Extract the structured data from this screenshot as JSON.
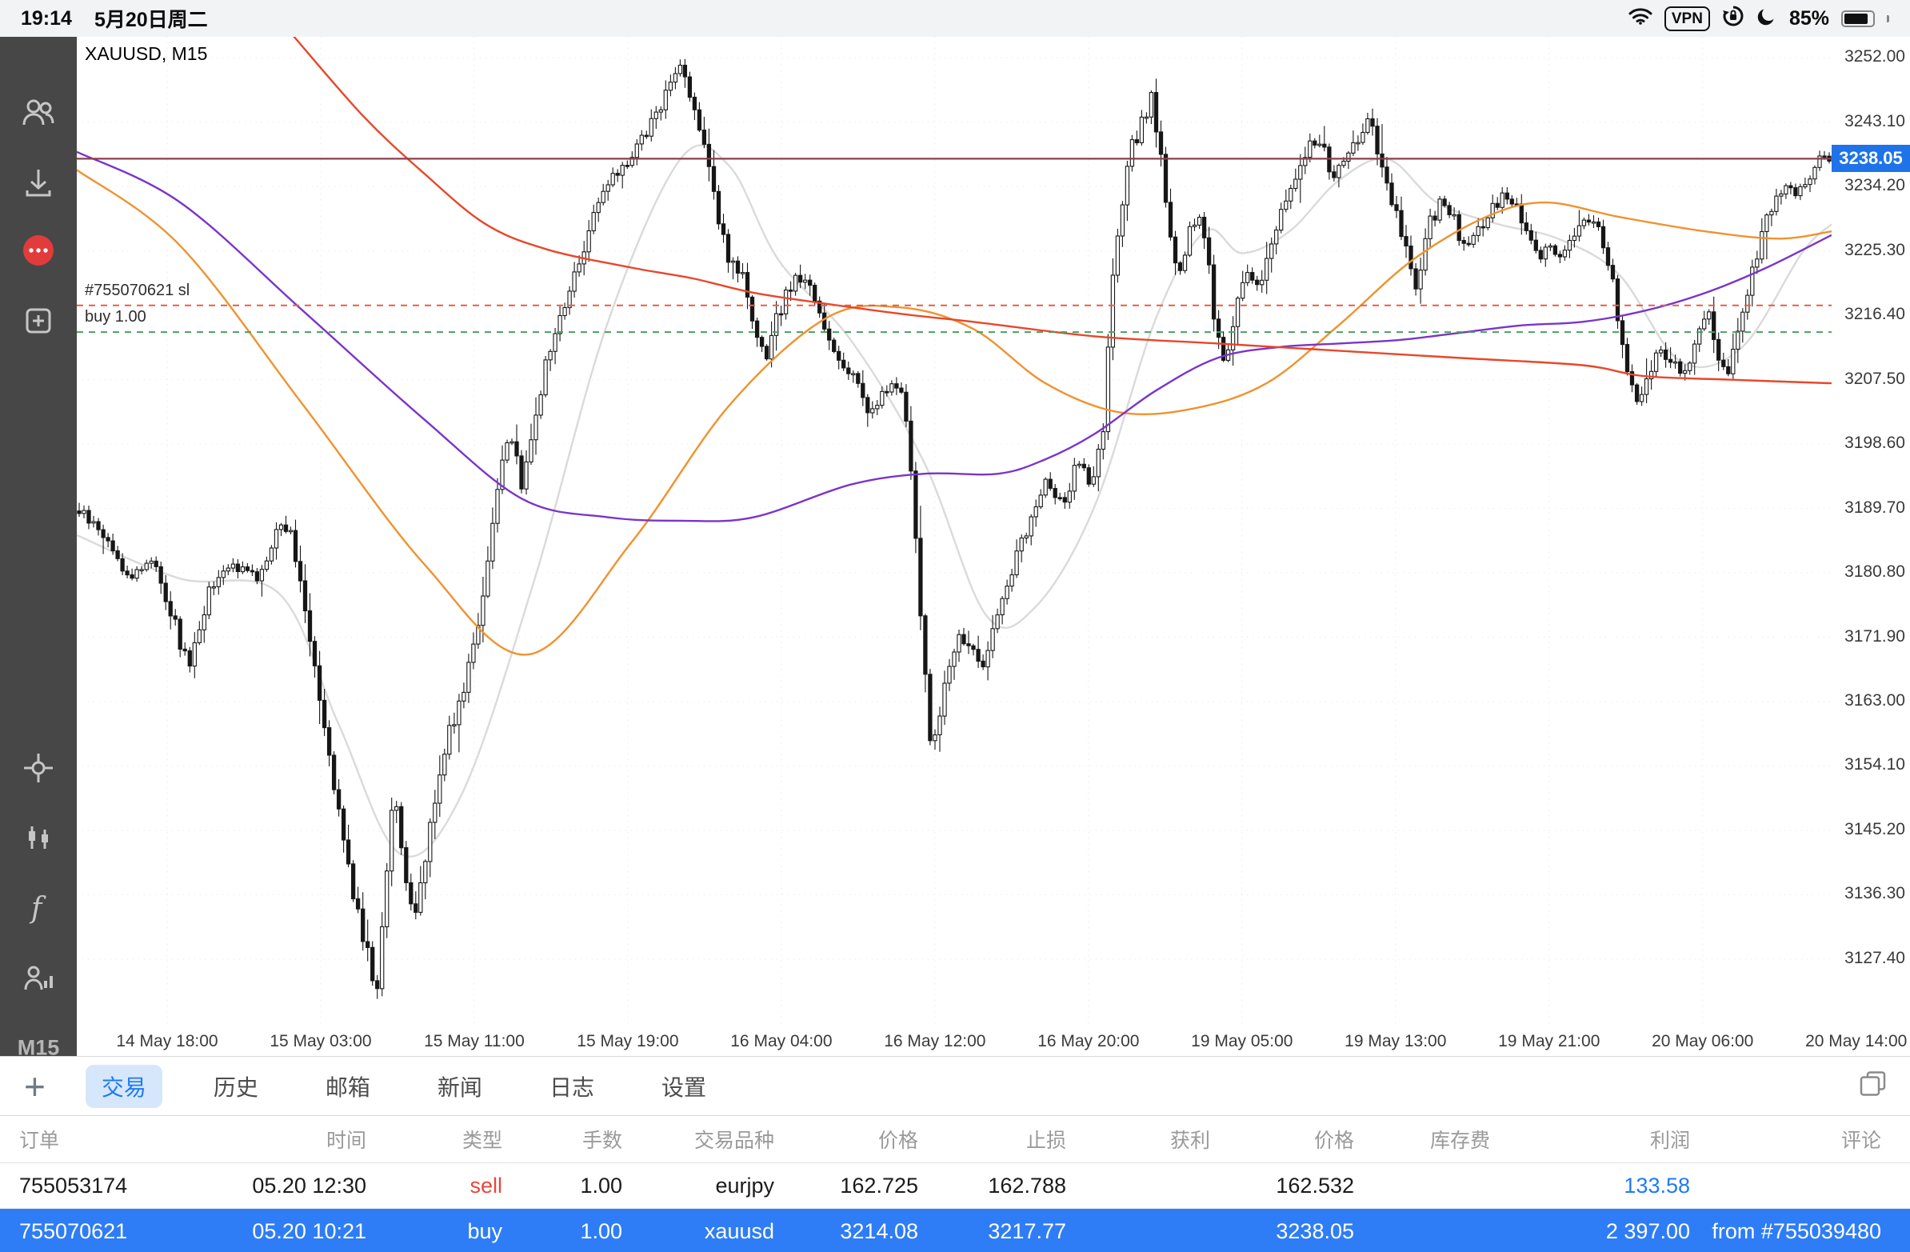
{
  "colors": {
    "accent_blue": "#1f7bf4",
    "sell_red": "#e8463c",
    "selected_row_blue": "#2e7df6",
    "sidebar_bg": "#474747",
    "icon_gray": "#c6c6c6",
    "price_tag_blue": "#1e73e8"
  },
  "status_bar": {
    "time": "19:14",
    "date": "5月20日周二",
    "vpn_label": "VPN",
    "battery_percent": "85%",
    "icons": [
      "wifi-icon",
      "vpn-badge",
      "orientation-lock-icon",
      "moon-icon",
      "battery-icon"
    ]
  },
  "sidebar": {
    "icons": [
      "accounts-icon",
      "download-quotes-icon",
      "messages-icon",
      "new-order-icon",
      "crosshair-icon",
      "indicators-icon",
      "functions-icon",
      "objects-icon"
    ],
    "messages_badge_color": "#e23b3b",
    "timeframe": "M15"
  },
  "chart": {
    "symbol_label": "XAUUSD, M15",
    "sl_line_label": "#755070621 sl",
    "buy_line_label": "buy 1.00",
    "current_price_label": "3238.05"
  },
  "chart_data": {
    "type": "candlestick",
    "symbol": "XAUUSD",
    "timeframe": "M15",
    "title": "XAUUSD, M15",
    "legend": "none",
    "grid": "faint dotted",
    "price_range": {
      "top": 3254.9,
      "bottom": 3118.1
    },
    "current_price": 3238.05,
    "y_ticks": [
      "3252.00",
      "3243.10",
      "3234.20",
      "3225.30",
      "3216.40",
      "3207.50",
      "3198.60",
      "3189.70",
      "3180.80",
      "3171.90",
      "3163.00",
      "3154.10",
      "3145.20",
      "3136.30",
      "3127.40"
    ],
    "x_ticks": [
      {
        "f": 0.0515,
        "label": "14 May 18:00"
      },
      {
        "f": 0.139,
        "label": "15 May 03:00"
      },
      {
        "f": 0.2265,
        "label": "15 May 11:00"
      },
      {
        "f": 0.314,
        "label": "15 May 19:00"
      },
      {
        "f": 0.4015,
        "label": "16 May 04:00"
      },
      {
        "f": 0.489,
        "label": "16 May 12:00"
      },
      {
        "f": 0.5765,
        "label": "16 May 20:00"
      },
      {
        "f": 0.664,
        "label": "19 May 05:00"
      },
      {
        "f": 0.7515,
        "label": "19 May 13:00"
      },
      {
        "f": 0.839,
        "label": "19 May 21:00"
      },
      {
        "f": 0.9265,
        "label": "20 May 06:00"
      },
      {
        "f": 1.014,
        "label": "20 May 14:00"
      }
    ],
    "order_lines": [
      {
        "label": "#755070621 sl",
        "price": 3217.77,
        "color": "#e0604a",
        "style": "dashed"
      },
      {
        "label": "buy 1.00",
        "price": 3214.08,
        "color": "#4aa05e",
        "style": "dashed"
      }
    ],
    "colors": {
      "candle": "#161616",
      "price_line": "#8e3b50"
    },
    "price_path": [
      [
        0.0,
        3190
      ],
      [
        0.017,
        3186
      ],
      [
        0.031,
        3180
      ],
      [
        0.045,
        3183
      ],
      [
        0.059,
        3172
      ],
      [
        0.066,
        3168
      ],
      [
        0.076,
        3178
      ],
      [
        0.09,
        3182
      ],
      [
        0.104,
        3180
      ],
      [
        0.118,
        3188
      ],
      [
        0.125,
        3185
      ],
      [
        0.136,
        3170
      ],
      [
        0.146,
        3155
      ],
      [
        0.156,
        3140
      ],
      [
        0.167,
        3128
      ],
      [
        0.172,
        3122
      ],
      [
        0.177,
        3138
      ],
      [
        0.182,
        3150
      ],
      [
        0.188,
        3140
      ],
      [
        0.193,
        3132
      ],
      [
        0.202,
        3145
      ],
      [
        0.212,
        3158
      ],
      [
        0.222,
        3165
      ],
      [
        0.233,
        3178
      ],
      [
        0.243,
        3195
      ],
      [
        0.25,
        3200
      ],
      [
        0.255,
        3192
      ],
      [
        0.264,
        3205
      ],
      [
        0.275,
        3215
      ],
      [
        0.285,
        3222
      ],
      [
        0.295,
        3230
      ],
      [
        0.306,
        3235
      ],
      [
        0.316,
        3238
      ],
      [
        0.327,
        3242
      ],
      [
        0.337,
        3247
      ],
      [
        0.345,
        3251
      ],
      [
        0.352,
        3247
      ],
      [
        0.358,
        3240
      ],
      [
        0.365,
        3232
      ],
      [
        0.372,
        3225
      ],
      [
        0.38,
        3222
      ],
      [
        0.387,
        3214
      ],
      [
        0.394,
        3210
      ],
      [
        0.403,
        3218
      ],
      [
        0.412,
        3222
      ],
      [
        0.419,
        3220
      ],
      [
        0.427,
        3215
      ],
      [
        0.436,
        3210
      ],
      [
        0.445,
        3208
      ],
      [
        0.452,
        3203
      ],
      [
        0.459,
        3205
      ],
      [
        0.468,
        3207
      ],
      [
        0.475,
        3202
      ],
      [
        0.482,
        3175
      ],
      [
        0.489,
        3155
      ],
      [
        0.495,
        3165
      ],
      [
        0.504,
        3172
      ],
      [
        0.511,
        3170
      ],
      [
        0.519,
        3168
      ],
      [
        0.526,
        3175
      ],
      [
        0.535,
        3182
      ],
      [
        0.544,
        3188
      ],
      [
        0.554,
        3194
      ],
      [
        0.563,
        3190
      ],
      [
        0.572,
        3196
      ],
      [
        0.58,
        3192
      ],
      [
        0.586,
        3200
      ],
      [
        0.593,
        3225
      ],
      [
        0.6,
        3238
      ],
      [
        0.607,
        3242
      ],
      [
        0.614,
        3247
      ],
      [
        0.618,
        3240
      ],
      [
        0.623,
        3230
      ],
      [
        0.629,
        3222
      ],
      [
        0.636,
        3228
      ],
      [
        0.643,
        3230
      ],
      [
        0.65,
        3215
      ],
      [
        0.655,
        3210
      ],
      [
        0.662,
        3218
      ],
      [
        0.669,
        3222
      ],
      [
        0.676,
        3220
      ],
      [
        0.683,
        3228
      ],
      [
        0.69,
        3232
      ],
      [
        0.697,
        3236
      ],
      [
        0.704,
        3240
      ],
      [
        0.711,
        3240
      ],
      [
        0.716,
        3235
      ],
      [
        0.723,
        3238
      ],
      [
        0.73,
        3240
      ],
      [
        0.737,
        3244
      ],
      [
        0.741,
        3241
      ],
      [
        0.747,
        3236
      ],
      [
        0.753,
        3230
      ],
      [
        0.76,
        3224
      ],
      [
        0.764,
        3220
      ],
      [
        0.771,
        3228
      ],
      [
        0.778,
        3232
      ],
      [
        0.785,
        3230
      ],
      [
        0.792,
        3226
      ],
      [
        0.799,
        3228
      ],
      [
        0.806,
        3230
      ],
      [
        0.813,
        3233
      ],
      [
        0.82,
        3232
      ],
      [
        0.827,
        3228
      ],
      [
        0.834,
        3224
      ],
      [
        0.841,
        3226
      ],
      [
        0.848,
        3224
      ],
      [
        0.855,
        3228
      ],
      [
        0.862,
        3230
      ],
      [
        0.869,
        3228
      ],
      [
        0.876,
        3222
      ],
      [
        0.883,
        3210
      ],
      [
        0.89,
        3204
      ],
      [
        0.897,
        3208
      ],
      [
        0.903,
        3212
      ],
      [
        0.91,
        3210
      ],
      [
        0.917,
        3208
      ],
      [
        0.924,
        3214
      ],
      [
        0.931,
        3217
      ],
      [
        0.936,
        3212
      ],
      [
        0.942,
        3208
      ],
      [
        0.949,
        3215
      ],
      [
        0.956,
        3222
      ],
      [
        0.963,
        3228
      ],
      [
        0.97,
        3233
      ],
      [
        0.977,
        3235
      ],
      [
        0.982,
        3233
      ],
      [
        0.989,
        3236
      ],
      [
        0.995,
        3238
      ],
      [
        1.0,
        3238
      ]
    ],
    "moving_averages": [
      {
        "name": "ma-fast-gray",
        "color": "#dadada",
        "points": [
          [
            0.0,
            3186
          ],
          [
            0.059,
            3180
          ],
          [
            0.115,
            3178
          ],
          [
            0.149,
            3160
          ],
          [
            0.184,
            3142
          ],
          [
            0.219,
            3150
          ],
          [
            0.261,
            3180
          ],
          [
            0.302,
            3215
          ],
          [
            0.344,
            3238
          ],
          [
            0.372,
            3237
          ],
          [
            0.4,
            3224
          ],
          [
            0.441,
            3213
          ],
          [
            0.483,
            3196
          ],
          [
            0.518,
            3175
          ],
          [
            0.546,
            3176
          ],
          [
            0.58,
            3190
          ],
          [
            0.615,
            3216
          ],
          [
            0.643,
            3228
          ],
          [
            0.664,
            3225
          ],
          [
            0.691,
            3228
          ],
          [
            0.719,
            3235
          ],
          [
            0.747,
            3238
          ],
          [
            0.775,
            3232
          ],
          [
            0.81,
            3229
          ],
          [
            0.844,
            3227
          ],
          [
            0.879,
            3222
          ],
          [
            0.914,
            3210
          ],
          [
            0.949,
            3212
          ],
          [
            0.983,
            3225
          ],
          [
            1.0,
            3229
          ]
        ]
      },
      {
        "name": "ma-mid-orange",
        "color": "#f0922f",
        "points": [
          [
            0.0,
            3236.5
          ],
          [
            0.059,
            3226
          ],
          [
            0.129,
            3204
          ],
          [
            0.198,
            3182
          ],
          [
            0.257,
            3169.5
          ],
          [
            0.316,
            3185
          ],
          [
            0.372,
            3204
          ],
          [
            0.427,
            3216
          ],
          [
            0.469,
            3217.5
          ],
          [
            0.511,
            3214.5
          ],
          [
            0.552,
            3207
          ],
          [
            0.594,
            3203
          ],
          [
            0.636,
            3203.5
          ],
          [
            0.678,
            3207
          ],
          [
            0.719,
            3215
          ],
          [
            0.761,
            3224
          ],
          [
            0.803,
            3230
          ],
          [
            0.837,
            3232
          ],
          [
            0.879,
            3230
          ],
          [
            0.928,
            3228
          ],
          [
            0.97,
            3227
          ],
          [
            1.0,
            3228
          ]
        ]
      },
      {
        "name": "ma-slow-purple",
        "color": "#7a35c9",
        "points": [
          [
            0.0,
            3239
          ],
          [
            0.059,
            3232
          ],
          [
            0.129,
            3217
          ],
          [
            0.198,
            3202
          ],
          [
            0.254,
            3191
          ],
          [
            0.302,
            3188.5
          ],
          [
            0.344,
            3188
          ],
          [
            0.386,
            3188.5
          ],
          [
            0.441,
            3193
          ],
          [
            0.483,
            3194.5
          ],
          [
            0.525,
            3194.5
          ],
          [
            0.552,
            3196.5
          ],
          [
            0.58,
            3200
          ],
          [
            0.615,
            3206
          ],
          [
            0.65,
            3210.5
          ],
          [
            0.685,
            3212
          ],
          [
            0.719,
            3212.5
          ],
          [
            0.754,
            3213
          ],
          [
            0.789,
            3214
          ],
          [
            0.823,
            3215
          ],
          [
            0.858,
            3215.5
          ],
          [
            0.893,
            3217
          ],
          [
            0.928,
            3219.5
          ],
          [
            0.963,
            3223
          ],
          [
            1.0,
            3227.5
          ]
        ]
      },
      {
        "name": "ma-trend-red",
        "color": "#e8472a",
        "points": [
          [
            0.12,
            3256
          ],
          [
            0.163,
            3244
          ],
          [
            0.198,
            3236
          ],
          [
            0.233,
            3229
          ],
          [
            0.268,
            3225.5
          ],
          [
            0.316,
            3223
          ],
          [
            0.351,
            3221.5
          ],
          [
            0.386,
            3219.5
          ],
          [
            0.427,
            3218
          ],
          [
            0.473,
            3216.5
          ],
          [
            0.511,
            3215.5
          ],
          [
            0.58,
            3213.5
          ],
          [
            0.65,
            3212.5
          ],
          [
            0.719,
            3211.5
          ],
          [
            0.789,
            3210.5
          ],
          [
            0.858,
            3209.5
          ],
          [
            0.893,
            3208
          ],
          [
            0.942,
            3207.5
          ],
          [
            1.0,
            3207
          ]
        ]
      }
    ]
  },
  "toolbar": {
    "add_icon": "+",
    "tabs": [
      {
        "key": "trade",
        "label": "交易",
        "active": true
      },
      {
        "key": "history",
        "label": "历史",
        "active": false
      },
      {
        "key": "mailbox",
        "label": "邮箱",
        "active": false
      },
      {
        "key": "news",
        "label": "新闻",
        "active": false
      },
      {
        "key": "journal",
        "label": "日志",
        "active": false
      },
      {
        "key": "settings",
        "label": "设置",
        "active": false
      }
    ]
  },
  "orders": {
    "headers": [
      "订单",
      "时间",
      "类型",
      "手数",
      "交易品种",
      "价格",
      "止损",
      "获利",
      "价格",
      "库存费",
      "利润",
      "评论"
    ],
    "rows": [
      {
        "id": "755053174",
        "time": "05.20 12:30",
        "type": "sell",
        "volume": "1.00",
        "symbol": "eurjpy",
        "price": "162.725",
        "sl": "162.788",
        "tp": "",
        "current_price": "162.532",
        "swap": "",
        "profit": "133.58",
        "comment": "",
        "selected": false
      },
      {
        "id": "755070621",
        "time": "05.20 10:21",
        "type": "buy",
        "volume": "1.00",
        "symbol": "xauusd",
        "price": "3214.08",
        "sl": "3217.77",
        "tp": "",
        "current_price": "3238.05",
        "swap": "",
        "profit": "2 397.00",
        "comment": "from #755039480",
        "selected": true
      }
    ]
  }
}
